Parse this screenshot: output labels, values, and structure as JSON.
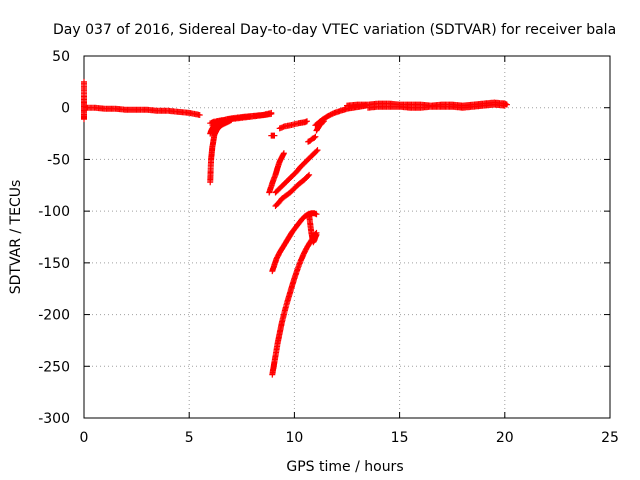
{
  "chart_data": {
    "type": "scatter",
    "title": "Day 037 of 2016, Sidereal Day-to-day VTEC variation (SDTVAR) for receiver bala",
    "xlabel": "GPS time / hours",
    "ylabel": "SDTVAR / TECUs",
    "xlim": [
      0,
      25
    ],
    "ylim": [
      -300,
      50
    ],
    "xticks": [
      0,
      5,
      10,
      15,
      20,
      25
    ],
    "yticks": [
      50,
      0,
      -50,
      -100,
      -150,
      -200,
      -250,
      -300
    ],
    "grid": true,
    "marker": "+",
    "color": "#ff0000",
    "series": [
      {
        "segments": [
          {
            "x": [
              0.1,
              0.5,
              1.0,
              1.5,
              2.0,
              2.5,
              3.0,
              3.5,
              4.0,
              4.5,
              5.0,
              5.5
            ],
            "y": [
              0,
              0,
              -1,
              -1,
              -2,
              -2,
              -2,
              -3,
              -3,
              -4,
              -5,
              -7
            ]
          },
          {
            "x": [
              0.0,
              0.0,
              0.0,
              0.0,
              0.0
            ],
            "y": [
              25,
              5,
              -4,
              -8,
              -11
            ]
          },
          {
            "x": [
              6.0,
              6.02,
              6.04,
              6.07,
              6.1,
              6.15,
              6.2,
              6.3,
              6.45,
              6.6,
              6.8,
              7.0
            ],
            "y": [
              -72,
              -60,
              -50,
              -44,
              -38,
              -32,
              -26,
              -22,
              -18,
              -16,
              -14,
              -12
            ]
          },
          {
            "x": [
              6.0,
              6.05,
              6.1,
              6.2,
              6.3,
              6.5,
              6.8,
              7.1,
              7.5,
              8.0,
              8.5,
              8.9
            ],
            "y": [
              -25,
              -22,
              -20,
              -17,
              -15,
              -13,
              -11,
              -10,
              -9,
              -8,
              -7,
              -5
            ]
          },
          {
            "x": [
              6.1,
              6.3,
              6.6,
              7.0,
              7.4,
              7.8,
              8.2,
              8.6,
              8.9
            ],
            "y": [
              -14,
              -13,
              -12,
              -11,
              -10,
              -9,
              -8,
              -7,
              -6
            ]
          },
          {
            "x": [
              6.0,
              6.25
            ],
            "y": [
              -15,
              -14
            ]
          },
          {
            "x": [
              8.9,
              9.05
            ],
            "y": [
              -27,
              -27
            ]
          },
          {
            "x": [
              9.3,
              9.55,
              9.8,
              10.0,
              10.2,
              10.5,
              10.6
            ],
            "y": [
              -20,
              -18,
              -17,
              -16,
              -15,
              -14,
              -13
            ]
          },
          {
            "x": [
              10.65,
              10.75,
              10.85,
              10.95,
              11.0
            ],
            "y": [
              -33,
              -32,
              -30,
              -29,
              -28
            ]
          },
          {
            "x": [
              8.8,
              8.9,
              9.0,
              9.1,
              9.2,
              9.3,
              9.4,
              9.5
            ],
            "y": [
              -82,
              -76,
              -70,
              -65,
              -58,
              -52,
              -48,
              -44
            ]
          },
          {
            "x": [
              9.1,
              9.3,
              9.5,
              9.7,
              9.9,
              10.1,
              10.3,
              10.5,
              10.7,
              10.9,
              11.1
            ],
            "y": [
              -82,
              -78,
              -74,
              -70,
              -66,
              -62,
              -57,
              -53,
              -49,
              -45,
              -41
            ]
          },
          {
            "x": [
              9.1,
              9.25,
              9.4,
              9.6,
              9.8,
              10.0,
              10.2,
              10.45,
              10.7
            ],
            "y": [
              -95,
              -92,
              -88,
              -85,
              -82,
              -78,
              -74,
              -70,
              -65
            ]
          },
          {
            "x": [
              8.95,
              9.05,
              9.15,
              9.3,
              9.45,
              9.6,
              9.75,
              9.9,
              10.05,
              10.2,
              10.35,
              10.5,
              10.65,
              10.8,
              10.95,
              11.05
            ],
            "y": [
              -158,
              -152,
              -146,
              -140,
              -135,
              -130,
              -125,
              -120,
              -116,
              -112,
              -108,
              -105,
              -103,
              -102,
              -102,
              -103
            ]
          },
          {
            "x": [
              8.95,
              9.0,
              9.05,
              9.12,
              9.2,
              9.3,
              9.4,
              9.55,
              9.7,
              9.85,
              10.0,
              10.15,
              10.3,
              10.45,
              10.6,
              10.75,
              10.85,
              10.95,
              11.0,
              11.05
            ],
            "y": [
              -258,
              -252,
              -246,
              -238,
              -228,
              -218,
              -208,
              -196,
              -185,
              -175,
              -165,
              -156,
              -148,
              -141,
              -135,
              -130,
              -127,
              -124,
              -122,
              -121
            ]
          },
          {
            "x": [
              10.7,
              10.75,
              10.8,
              10.85,
              10.9,
              10.95,
              11.0,
              11.05
            ],
            "y": [
              -104,
              -112,
              -120,
              -126,
              -130,
              -128,
              -125,
              -123
            ]
          },
          {
            "x": [
              11.0,
              11.3,
              11.6,
              11.9,
              12.2,
              12.5,
              12.8,
              13.1,
              13.4
            ],
            "y": [
              -17,
              -12,
              -8,
              -5,
              -3,
              -1,
              0,
              1,
              2
            ]
          },
          {
            "x": [
              11.05,
              11.2,
              11.4
            ],
            "y": [
              -22,
              -17,
              -13
            ]
          },
          {
            "x": [
              12.5,
              13.0,
              13.5,
              14.0,
              14.5,
              15.0,
              15.5,
              16.0,
              16.5,
              17.0,
              17.5,
              18.0,
              18.5,
              19.0,
              19.5,
              20.0,
              20.1
            ],
            "y": [
              2,
              3,
              3,
              4,
              4,
              3,
              3,
              3,
              2,
              3,
              3,
              2,
              3,
              4,
              5,
              4,
              3
            ]
          },
          {
            "x": [
              13.5,
              14.0,
              14.5,
              15.0,
              15.5,
              16.0,
              16.5,
              17.0,
              17.5,
              18.0,
              18.5,
              19.0,
              19.5,
              20.0
            ],
            "y": [
              0,
              1,
              1,
              1,
              0,
              0,
              1,
              1,
              1,
              0,
              1,
              2,
              3,
              2
            ]
          }
        ]
      }
    ]
  }
}
